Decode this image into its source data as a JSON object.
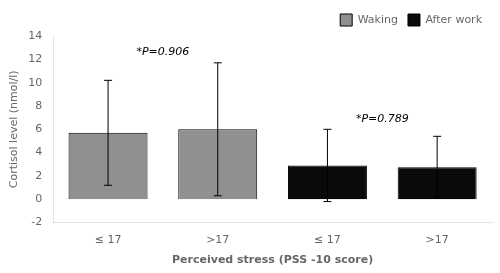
{
  "chart_data": {
    "type": "bar",
    "categories": [
      "≤ 17",
      ">17",
      "≤ 17",
      ">17"
    ],
    "series": [
      {
        "name": "Waking",
        "color": "#909090",
        "values": [
          5.7,
          6.0,
          null,
          null
        ],
        "errors": [
          4.5,
          5.7,
          null,
          null
        ]
      },
      {
        "name": "After work",
        "color": "#0a0a0a",
        "values": [
          null,
          null,
          2.9,
          2.75
        ],
        "errors": [
          null,
          null,
          3.1,
          2.65
        ]
      }
    ],
    "xlabel": "Perceived stress (PSS -10 score)",
    "ylabel": "Cortisol level (nmol/l)",
    "annotations": [
      "*P=0.906",
      "*P=0.789"
    ],
    "ylim": [
      -2,
      14
    ],
    "yticks": [
      -2,
      0,
      2,
      4,
      6,
      8,
      10,
      12,
      14
    ],
    "grid": false,
    "legend": "upper right"
  }
}
